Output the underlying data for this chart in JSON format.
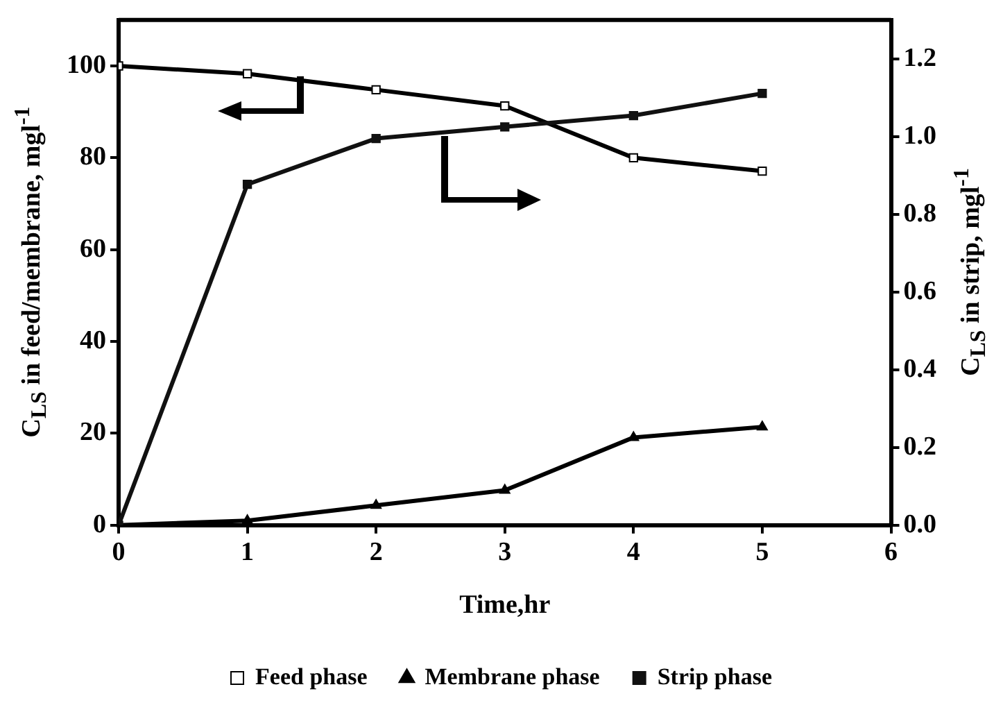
{
  "chart_data": {
    "type": "line",
    "xlabel": "Time,hr",
    "ylabel": "C$_{LS}$ in feed/membrane, mgl$^{-1}$",
    "y2label": "C$_{LS}$ in strip, mgl$^{-1}$",
    "x": [
      0,
      1,
      2,
      3,
      4,
      5
    ],
    "xlim": [
      0,
      6
    ],
    "xticks": [
      0,
      1,
      2,
      3,
      4,
      5,
      6
    ],
    "ylim": [
      0,
      110
    ],
    "yticks": [
      0,
      20,
      40,
      60,
      80,
      100
    ],
    "y2lim": [
      0,
      1.3
    ],
    "y2ticks": [
      {
        "value": 0,
        "label": "0.0"
      },
      0.2,
      0.4,
      0.6,
      0.8,
      {
        "value": 1,
        "label": "1.0"
      },
      1.2
    ],
    "grid": false,
    "legend": "bottom",
    "line_style": "solid",
    "series": [
      {
        "name": "Feed phase",
        "color": "#000000",
        "marker": "square",
        "values": [
          100,
          98.3,
          94.8,
          91.3,
          80.0,
          77.1
        ]
      },
      {
        "name": "Membrane phase",
        "color": "#000000",
        "marker": "triangle",
        "values": [
          0,
          1.0,
          4.3,
          7.6,
          19.1,
          21.4
        ]
      },
      {
        "name": "Strip phase",
        "color": "#111111",
        "marker": "square",
        "axis": "y2",
        "values": [
          0,
          0.877,
          0.995,
          1.025,
          1.054,
          1.111
        ]
      }
    ]
  }
}
